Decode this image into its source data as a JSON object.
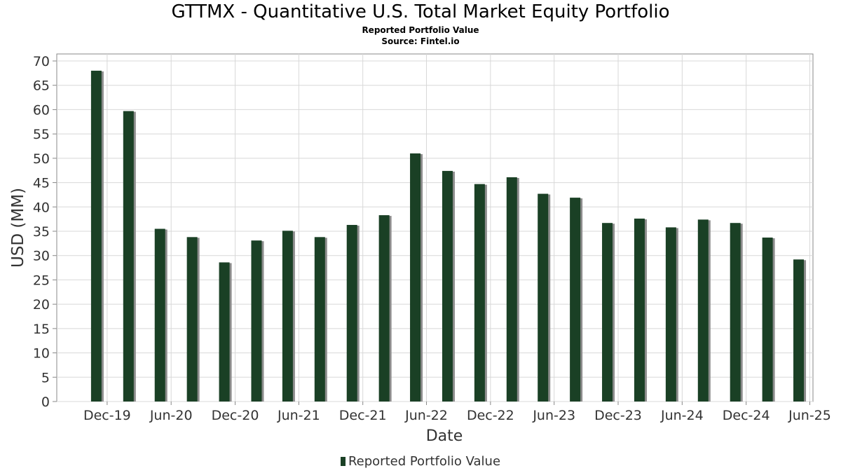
{
  "chart_data": {
    "type": "bar",
    "title": "GTTMX - Quantitative U.S. Total Market Equity Portfolio",
    "subtitle": "Reported Portfolio Value",
    "source": "Source: Fintel.io",
    "xlabel": "Date",
    "ylabel": "USD (MM)",
    "ylim": [
      0,
      70
    ],
    "yticks": [
      0,
      5,
      10,
      15,
      20,
      25,
      30,
      35,
      40,
      45,
      50,
      55,
      60,
      65,
      70
    ],
    "xrange": [
      "2019-07-10",
      "2025-06-10"
    ],
    "xticks": [
      {
        "label": "Dec-19",
        "date": "2019-12-01"
      },
      {
        "label": "Jun-20",
        "date": "2020-06-01"
      },
      {
        "label": "Dec-20",
        "date": "2020-12-01"
      },
      {
        "label": "Jun-21",
        "date": "2021-06-01"
      },
      {
        "label": "Dec-21",
        "date": "2021-12-01"
      },
      {
        "label": "Jun-22",
        "date": "2022-06-01"
      },
      {
        "label": "Dec-22",
        "date": "2022-12-01"
      },
      {
        "label": "Jun-23",
        "date": "2023-06-01"
      },
      {
        "label": "Dec-23",
        "date": "2023-12-01"
      },
      {
        "label": "Jun-24",
        "date": "2024-06-01"
      },
      {
        "label": "Dec-24",
        "date": "2024-12-01"
      },
      {
        "label": "Jun-25",
        "date": "2025-06-01"
      }
    ],
    "grid": true,
    "legend_position": "bottom",
    "bar_color": "#1a4025",
    "series": [
      {
        "name": "Reported Portfolio Value",
        "x": [
          "2019-10-31",
          "2020-01-31",
          "2020-04-30",
          "2020-07-31",
          "2020-10-31",
          "2021-01-31",
          "2021-04-30",
          "2021-07-31",
          "2021-10-31",
          "2022-01-31",
          "2022-04-30",
          "2022-07-31",
          "2022-10-31",
          "2023-01-31",
          "2023-04-30",
          "2023-07-31",
          "2023-10-31",
          "2024-01-31",
          "2024-04-30",
          "2024-07-31",
          "2024-10-31",
          "2025-01-31",
          "2025-04-30"
        ],
        "values": [
          68.0,
          59.7,
          35.5,
          33.8,
          28.6,
          33.1,
          35.1,
          33.8,
          36.3,
          38.3,
          51.0,
          47.4,
          44.7,
          46.1,
          42.7,
          41.9,
          36.7,
          37.6,
          35.8,
          37.4,
          36.7,
          33.7,
          29.2
        ]
      }
    ]
  }
}
